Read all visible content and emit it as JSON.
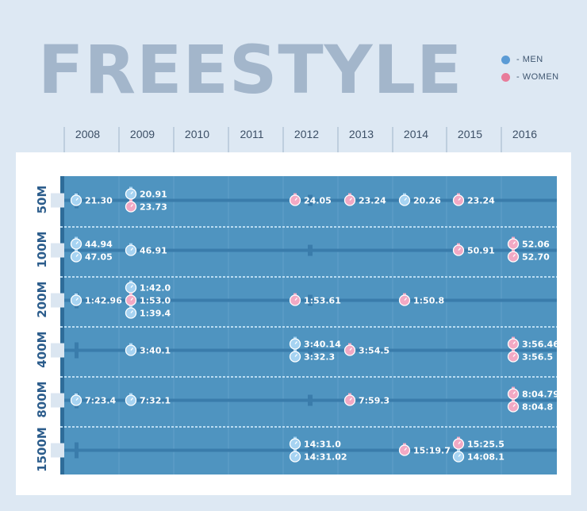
{
  "title": "FREESTYLE",
  "legend": [
    {
      "label": "- MEN",
      "color": "#5b9bd5"
    },
    {
      "label": "- WOMEN",
      "color": "#e87c9a"
    }
  ],
  "colors": {
    "men": "#a6d3f2",
    "women": "#f2a9c4",
    "pool": "#4f94c0",
    "lane": "#3a7cab"
  },
  "chart_data": {
    "type": "scatter",
    "title": "FREESTYLE",
    "years": [
      "2008",
      "2009",
      "2010",
      "2011",
      "2012",
      "2013",
      "2014",
      "2015",
      "2016"
    ],
    "distances": [
      "50M",
      "100M",
      "200M",
      "400M",
      "800M",
      "1500M"
    ],
    "records": [
      {
        "distance": "50M",
        "year": "2008",
        "gender": "men",
        "time": "21.30"
      },
      {
        "distance": "50M",
        "year": "2009",
        "gender": "men",
        "time": "20.91"
      },
      {
        "distance": "50M",
        "year": "2009",
        "gender": "women",
        "time": "23.73"
      },
      {
        "distance": "50M",
        "year": "2012",
        "gender": "women",
        "time": "24.05"
      },
      {
        "distance": "50M",
        "year": "2013",
        "gender": "women",
        "time": "23.24"
      },
      {
        "distance": "50M",
        "year": "2014",
        "gender": "men",
        "time": "20.26"
      },
      {
        "distance": "50M",
        "year": "2015",
        "gender": "women",
        "time": "23.24"
      },
      {
        "distance": "100M",
        "year": "2008",
        "gender": "men",
        "time": "44.94"
      },
      {
        "distance": "100M",
        "year": "2008",
        "gender": "men",
        "time": "47.05"
      },
      {
        "distance": "100M",
        "year": "2009",
        "gender": "men",
        "time": "46.91"
      },
      {
        "distance": "100M",
        "year": "2015",
        "gender": "women",
        "time": "50.91"
      },
      {
        "distance": "100M",
        "year": "2016",
        "gender": "women",
        "time": "52.06"
      },
      {
        "distance": "100M",
        "year": "2016",
        "gender": "women",
        "time": "52.70"
      },
      {
        "distance": "200M",
        "year": "2008",
        "gender": "men",
        "time": "1:42.96"
      },
      {
        "distance": "200M",
        "year": "2009",
        "gender": "men",
        "time": "1:42.0"
      },
      {
        "distance": "200M",
        "year": "2009",
        "gender": "women",
        "time": "1:53.0"
      },
      {
        "distance": "200M",
        "year": "2009",
        "gender": "men",
        "time": "1:39.4"
      },
      {
        "distance": "200M",
        "year": "2012",
        "gender": "women",
        "time": "1:53.61"
      },
      {
        "distance": "200M",
        "year": "2014",
        "gender": "women",
        "time": "1:50.8"
      },
      {
        "distance": "400M",
        "year": "2009",
        "gender": "men",
        "time": "3:40.1"
      },
      {
        "distance": "400M",
        "year": "2012",
        "gender": "men",
        "time": "3:40.14"
      },
      {
        "distance": "400M",
        "year": "2012",
        "gender": "men",
        "time": "3:32.3"
      },
      {
        "distance": "400M",
        "year": "2013",
        "gender": "women",
        "time": "3:54.5"
      },
      {
        "distance": "400M",
        "year": "2016",
        "gender": "women",
        "time": "3:56.46"
      },
      {
        "distance": "400M",
        "year": "2016",
        "gender": "women",
        "time": "3:56.5"
      },
      {
        "distance": "800M",
        "year": "2008",
        "gender": "men",
        "time": "7:23.4"
      },
      {
        "distance": "800M",
        "year": "2009",
        "gender": "men",
        "time": "7:32.1"
      },
      {
        "distance": "800M",
        "year": "2013",
        "gender": "women",
        "time": "7:59.3"
      },
      {
        "distance": "800M",
        "year": "2016",
        "gender": "women",
        "time": "8:04.79"
      },
      {
        "distance": "800M",
        "year": "2016",
        "gender": "women",
        "time": "8:04.8"
      },
      {
        "distance": "1500M",
        "year": "2012",
        "gender": "men",
        "time": "14:31.0"
      },
      {
        "distance": "1500M",
        "year": "2012",
        "gender": "men",
        "time": "14:31.02"
      },
      {
        "distance": "1500M",
        "year": "2014",
        "gender": "women",
        "time": "15:19.7"
      },
      {
        "distance": "1500M",
        "year": "2015",
        "gender": "women",
        "time": "15:25.5"
      },
      {
        "distance": "1500M",
        "year": "2015",
        "gender": "men",
        "time": "14:08.1"
      }
    ]
  }
}
